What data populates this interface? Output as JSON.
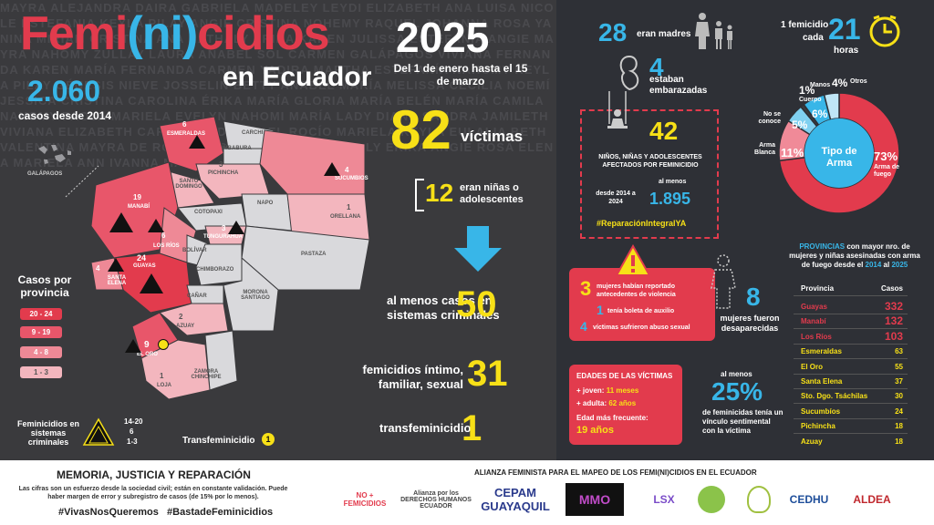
{
  "background_names": "MAYRA ALEJANDRA DAIRA GABRIELA MADELEY LEYDI ELIZABETH ANA LUISA NICOLE ESTEFANIA KEYLA PILAY ANGIE CRISTINA NOHEMY RAQUEL JOHANNA ROSA YANINA MIRIAM CRISTINA ANA NATHALY ÉRIKA KAREN JULISSA ESTEFANÍA ANGIE MAYRA NAHOMY ZULLAY LAURA ANABEL SOL CARMEN GALÁPAGOS VIVIANA FERNANDA KAREN MARÍA FERNANDA CARMEN YADIRA MARTHA ESTEFANÍA NAHOMY KEYLA PILAY GÉNESIS NIEVE JOSSELIN BETTY ANABEL MARÍA MELISSA CECILIA NOEMÍ JESSICA CRISTINA CAROLINA ÉRIKA MARÍA GLORIA MARÍA BELÉN MARÍA CAMILA NAHOMY PAOLA MARIELA EVELYN NAHOMI MARÍA LADY DIANA SANDRA JAMILETH VIVIANA ELIZABETH CARMEN ANDREA DEL ROCÍO MARIELA KEYLA EULALIA BETH VALENTINA MAYRA DE ROSARIO GLORIA MARÍA NATHALY ERIKA ANGIE ROSA ELENA MARIELA ANN IVANNA MAY",
  "title": {
    "part1": "Femi",
    "part2": "(",
    "part3": "ni",
    "part4": ")",
    "part5": "cidios",
    "year": "2025",
    "subtitle": "en Ecuador",
    "date_range": "Del 1 de enero hasta el 15 de marzo"
  },
  "cases_since_2014": {
    "value": "2.060",
    "label": "casos desde 2014"
  },
  "galapagos_label": "GALÁPAGOS",
  "victims": {
    "value": "82",
    "label": "víctimas"
  },
  "girls": {
    "value": "12",
    "label": "eran niñas o adolescentes"
  },
  "criminal_systems": {
    "label": "al menos casos en sistemas criminales",
    "value": "50"
  },
  "intimate": {
    "label": "femicidios íntimo, familiar, sexual",
    "value": "31"
  },
  "transfeminicide": {
    "label": "transfeminicidio",
    "value": "1"
  },
  "map": {
    "provinces": [
      {
        "name": "ESMERALDAS",
        "count": "6"
      },
      {
        "name": "CARCHI",
        "count": ""
      },
      {
        "name": "IMBABURA",
        "count": ""
      },
      {
        "name": "PICHINCHA",
        "count": "3"
      },
      {
        "name": "SUCUMBIOS",
        "count": "4"
      },
      {
        "name": "SANTO DOMINGO",
        "count": "1"
      },
      {
        "name": "NAPO",
        "count": ""
      },
      {
        "name": "ORELLANA",
        "count": "1"
      },
      {
        "name": "MANABÍ",
        "count": "19"
      },
      {
        "name": "COTOPAXI",
        "count": ""
      },
      {
        "name": "LOS RÍOS",
        "count": "6"
      },
      {
        "name": "TUNGURAHUA",
        "count": "3"
      },
      {
        "name": "BOLÍVAR",
        "count": ""
      },
      {
        "name": "PASTAZA",
        "count": ""
      },
      {
        "name": "GUAYAS",
        "count": "24"
      },
      {
        "name": "CHIMBORAZO",
        "count": ""
      },
      {
        "name": "SANTA ELENA",
        "count": "4"
      },
      {
        "name": "CAÑAR",
        "count": ""
      },
      {
        "name": "MORONA SANTIAGO",
        "count": ""
      },
      {
        "name": "AZUAY",
        "count": "2"
      },
      {
        "name": "EL ORO",
        "count": "9"
      },
      {
        "name": "ZAMORA CHINCHIPE",
        "count": ""
      },
      {
        "name": "LOJA",
        "count": "1"
      }
    ]
  },
  "legend": {
    "title": "Casos por provincia",
    "ranges": [
      {
        "label": "20 - 24",
        "color": "#e23b4d"
      },
      {
        "label": "9 - 19",
        "color": "#e8566a"
      },
      {
        "label": "4 - 8",
        "color": "#ee8996"
      },
      {
        "label": "1 - 3",
        "color": "#f3b6be"
      }
    ],
    "criminal_title": "Feminicidios en sistemas criminales",
    "criminal_ranges": [
      "14-20",
      "6",
      "1-3"
    ],
    "trans_label": "Transfeminicidio",
    "trans_value": "1"
  },
  "mothers": {
    "value": "28",
    "label": "eran madres"
  },
  "frequency": {
    "label1": "1 femicidio",
    "label2": "cada",
    "value": "21",
    "unit": "horas"
  },
  "pregnant": {
    "value": "4",
    "label": "estaban embarazadas"
  },
  "children": {
    "value": "42",
    "label": "NIÑOS, NIÑAS Y ADOLESCENTES AFECTADOS POR FEMINICIDIO",
    "period": "desde 2014 a 2024",
    "atleast": "al menos",
    "total": "1.895",
    "hashtag": "#ReparaciónIntegralYA"
  },
  "weapon_chart": {
    "center_label": "Tipo de Arma",
    "slices": [
      {
        "label": "Arma de fuego",
        "value": 73,
        "display": "73%",
        "color": "#e23b4d"
      },
      {
        "label": "Arma Blanca",
        "value": 11,
        "display": "11%",
        "color": "#f08a98"
      },
      {
        "label": "No se conoce",
        "value": 5,
        "display": "5%",
        "color": "#7fd0f0"
      },
      {
        "label": "Cuerpo",
        "value": 1,
        "display": "1%",
        "color": "#3a3a3d"
      },
      {
        "label": "Manos",
        "value": 6,
        "display": "6%",
        "color": "#38b6e8"
      },
      {
        "label": "Otros",
        "value": 4,
        "display": "4%",
        "color": "#bfe6f6"
      }
    ]
  },
  "provinces_title": {
    "part1": "PROVINCIAS",
    "part2": " con mayor nro. de mujeres y niñas asesinadas con arma de fuego desde el ",
    "part3": "2014",
    "part4": " al ",
    "part5": "2025"
  },
  "provinces_table": {
    "header": [
      "Provincia",
      "Casos"
    ],
    "rows": [
      {
        "name": "Guayas",
        "value": "332",
        "color": "#e23b4d"
      },
      {
        "name": "Manabí",
        "value": "132",
        "color": "#e23b4d"
      },
      {
        "name": "Los Ríos",
        "value": "103",
        "color": "#e23b4d"
      },
      {
        "name": "Esmeraldas",
        "value": "63",
        "color": "#f7e017"
      },
      {
        "name": "El Oro",
        "value": "55",
        "color": "#f7e017"
      },
      {
        "name": "Santa Elena",
        "value": "37",
        "color": "#f7e017"
      },
      {
        "name": "Sto. Dgo. Tsáchilas",
        "value": "30",
        "color": "#f7e017"
      },
      {
        "name": "Sucumbíos",
        "value": "24",
        "color": "#f7e017"
      },
      {
        "name": "Pichincha",
        "value": "18",
        "color": "#f7e017"
      },
      {
        "name": "Azuay",
        "value": "18",
        "color": "#f7e017"
      }
    ]
  },
  "violence_box": {
    "v1": "3",
    "t1": "mujeres habían reportado antecedentes de violencia",
    "v2": "1",
    "t2": "tenía boleta de auxilio",
    "v3": "4",
    "t3": "víctimas sufrieron abuso sexual"
  },
  "disappeared": {
    "value": "8",
    "label": "mujeres fueron desaparecidas"
  },
  "ages": {
    "title": "EDADES DE LAS VÍCTIMAS",
    "young_label": "+ joven: ",
    "young": "11 meses",
    "old_label": "+ adulta: ",
    "old": "62 años",
    "freq_label": "Edad más frecuente:",
    "freq": "19 años"
  },
  "sentimental": {
    "atleast": "al menos",
    "value": "25%",
    "label": "de feminicidas tenía un vínculo sentimental con la víctima"
  },
  "footer": {
    "title": "MEMORIA, JUSTICIA Y REPARACIÓN",
    "note": "Las cifras son un esfuerzo desde la sociedad civil; están en constante validación. Puede haber margen de error y subregistro de casos (de 15% por lo menos).",
    "hashtags": "#VivasNosQueremos   #BastadeFeminicidios",
    "alliance": "ALIANZA FEMINISTA PARA EL MAPEO DE LOS FEMI(NI)CIDIOS EN EL ECUADOR",
    "logos": [
      "NO + FEMICIDIOS",
      "Alianza por los DERECHOS HUMANOS ECUADOR",
      "CEPAM GUAYAQUIL",
      "MMO",
      "LSX",
      "",
      "",
      "CEDHU",
      "ALDEA"
    ]
  }
}
